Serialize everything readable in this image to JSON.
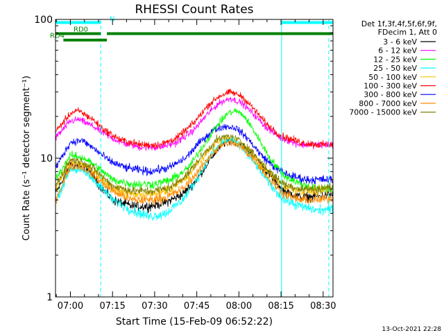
{
  "chart_data": {
    "type": "line",
    "title": "RHESSI Count Rates",
    "xlabel": "Start Time (15-Feb-09 06:52:22)",
    "ylabel": "Count Rate (s⁻¹ detector segment⁻¹)",
    "y_scale": "log",
    "ylim": [
      1,
      100
    ],
    "xlim_minutes": [
      -5.3,
      93.5
    ],
    "y_ticks": [
      {
        "value": 1,
        "label": "1"
      },
      {
        "value": 10,
        "label": "10"
      },
      {
        "value": 100,
        "label": "100"
      }
    ],
    "x_ticks": [
      {
        "minute": 0,
        "label": "07:00"
      },
      {
        "minute": 15,
        "label": "07:15"
      },
      {
        "minute": 30,
        "label": "07:30"
      },
      {
        "minute": 45,
        "label": "07:45"
      },
      {
        "minute": 60,
        "label": "08:00"
      },
      {
        "minute": 75,
        "label": "08:15"
      },
      {
        "minute": 90,
        "label": "08:30"
      }
    ],
    "legend_header": [
      "Det 1f,3f,4f,5f,6f,9f,",
      "FDecim 1, Att 0"
    ],
    "legend_position": "right",
    "series": [
      {
        "name": "3 - 6 keV",
        "color": "#000000",
        "profile": [
          [
            -5.3,
            5.5
          ],
          [
            0,
            9.0
          ],
          [
            6,
            8.5
          ],
          [
            10,
            6.5
          ],
          [
            15,
            5.0
          ],
          [
            22,
            4.5
          ],
          [
            28,
            4.5
          ],
          [
            34,
            4.8
          ],
          [
            40,
            5.5
          ],
          [
            45,
            7.0
          ],
          [
            50,
            10.0
          ],
          [
            54,
            12.5
          ],
          [
            57,
            13.5
          ],
          [
            61,
            12.5
          ],
          [
            66,
            10.0
          ],
          [
            71,
            7.5
          ],
          [
            76,
            5.8
          ],
          [
            82,
            5.2
          ],
          [
            88,
            5.3
          ],
          [
            93.5,
            5.5
          ]
        ]
      },
      {
        "name": "6 - 12 keV",
        "color": "#ff00ff",
        "profile": [
          [
            -5.3,
            14.0
          ],
          [
            0,
            18.5
          ],
          [
            3,
            19.0
          ],
          [
            8,
            17.0
          ],
          [
            12,
            15.0
          ],
          [
            18,
            13.0
          ],
          [
            25,
            12.0
          ],
          [
            32,
            12.0
          ],
          [
            38,
            13.0
          ],
          [
            44,
            16.0
          ],
          [
            49,
            21.0
          ],
          [
            53,
            25.0
          ],
          [
            57,
            27.0
          ],
          [
            61,
            25.0
          ],
          [
            65,
            21.0
          ],
          [
            70,
            16.5
          ],
          [
            75,
            14.0
          ],
          [
            82,
            12.5
          ],
          [
            88,
            12.5
          ],
          [
            93.5,
            12.5
          ]
        ]
      },
      {
        "name": "12 - 25 keV",
        "color": "#00ff00",
        "profile": [
          [
            -5.3,
            7.0
          ],
          [
            0,
            10.5
          ],
          [
            5,
            10.0
          ],
          [
            10,
            8.5
          ],
          [
            15,
            7.0
          ],
          [
            22,
            6.5
          ],
          [
            30,
            6.5
          ],
          [
            36,
            7.0
          ],
          [
            42,
            8.5
          ],
          [
            47,
            12.0
          ],
          [
            52,
            17.0
          ],
          [
            56,
            21.0
          ],
          [
            59,
            22.0
          ],
          [
            62,
            20.0
          ],
          [
            66,
            15.0
          ],
          [
            71,
            10.0
          ],
          [
            76,
            7.5
          ],
          [
            82,
            6.5
          ],
          [
            88,
            6.0
          ],
          [
            93.5,
            6.0
          ]
        ]
      },
      {
        "name": "25 - 50 keV",
        "color": "#00ffff",
        "profile": [
          [
            -5.3,
            4.8
          ],
          [
            0,
            8.5
          ],
          [
            5,
            8.0
          ],
          [
            10,
            6.5
          ],
          [
            15,
            5.0
          ],
          [
            22,
            4.2
          ],
          [
            28,
            3.8
          ],
          [
            34,
            4.0
          ],
          [
            40,
            5.0
          ],
          [
            45,
            7.0
          ],
          [
            50,
            10.5
          ],
          [
            54,
            13.0
          ],
          [
            57,
            13.5
          ],
          [
            61,
            12.0
          ],
          [
            66,
            9.0
          ],
          [
            71,
            6.5
          ],
          [
            76,
            5.0
          ],
          [
            82,
            4.5
          ],
          [
            88,
            4.2
          ],
          [
            93.5,
            4.3
          ]
        ]
      },
      {
        "name": "50 - 100 keV",
        "color": "#ffc000",
        "profile": [
          [
            -5.3,
            6.0
          ],
          [
            0,
            9.5
          ],
          [
            5,
            9.0
          ],
          [
            10,
            7.5
          ],
          [
            15,
            6.0
          ],
          [
            22,
            5.5
          ],
          [
            30,
            5.5
          ],
          [
            36,
            6.0
          ],
          [
            42,
            7.5
          ],
          [
            47,
            10.0
          ],
          [
            52,
            13.0
          ],
          [
            56,
            14.0
          ],
          [
            60,
            13.0
          ],
          [
            65,
            10.5
          ],
          [
            70,
            8.0
          ],
          [
            76,
            6.3
          ],
          [
            82,
            5.8
          ],
          [
            88,
            5.8
          ],
          [
            93.5,
            6.0
          ]
        ]
      },
      {
        "name": "100 - 300 keV",
        "color": "#ff0000",
        "profile": [
          [
            -5.3,
            15.5
          ],
          [
            0,
            21.0
          ],
          [
            3,
            22.0
          ],
          [
            8,
            19.0
          ],
          [
            12,
            16.0
          ],
          [
            18,
            13.5
          ],
          [
            25,
            12.5
          ],
          [
            32,
            12.5
          ],
          [
            38,
            14.0
          ],
          [
            44,
            18.0
          ],
          [
            49,
            24.0
          ],
          [
            53,
            28.0
          ],
          [
            57,
            30.0
          ],
          [
            61,
            28.0
          ],
          [
            65,
            23.0
          ],
          [
            70,
            17.5
          ],
          [
            75,
            14.5
          ],
          [
            82,
            13.0
          ],
          [
            88,
            12.5
          ],
          [
            93.5,
            12.5
          ]
        ]
      },
      {
        "name": "300 - 800 keV",
        "color": "#0000ff",
        "profile": [
          [
            -5.3,
            8.5
          ],
          [
            0,
            13.0
          ],
          [
            4,
            13.5
          ],
          [
            9,
            11.5
          ],
          [
            14,
            9.5
          ],
          [
            20,
            8.5
          ],
          [
            28,
            8.0
          ],
          [
            35,
            8.5
          ],
          [
            41,
            10.0
          ],
          [
            46,
            13.0
          ],
          [
            51,
            16.0
          ],
          [
            55,
            17.0
          ],
          [
            59,
            16.5
          ],
          [
            63,
            14.0
          ],
          [
            68,
            10.5
          ],
          [
            73,
            8.5
          ],
          [
            78,
            7.5
          ],
          [
            84,
            7.0
          ],
          [
            89,
            7.0
          ],
          [
            93.5,
            7.0
          ]
        ]
      },
      {
        "name": "800 - 7000 keV",
        "color": "#ff8c00",
        "profile": [
          [
            -5.3,
            5.0
          ],
          [
            0,
            8.8
          ],
          [
            5,
            8.5
          ],
          [
            10,
            7.0
          ],
          [
            15,
            5.8
          ],
          [
            22,
            5.0
          ],
          [
            28,
            5.0
          ],
          [
            34,
            5.2
          ],
          [
            40,
            6.0
          ],
          [
            45,
            7.8
          ],
          [
            50,
            10.5
          ],
          [
            54,
            12.5
          ],
          [
            57,
            13.0
          ],
          [
            61,
            12.0
          ],
          [
            66,
            9.5
          ],
          [
            71,
            7.0
          ],
          [
            76,
            5.5
          ],
          [
            82,
            5.0
          ],
          [
            88,
            5.0
          ],
          [
            93.5,
            5.2
          ]
        ]
      },
      {
        "name": "7000 - 15000 keV",
        "color": "#808000",
        "profile": [
          [
            -5.3,
            6.3
          ],
          [
            0,
            9.8
          ],
          [
            5,
            9.3
          ],
          [
            10,
            7.8
          ],
          [
            15,
            6.3
          ],
          [
            22,
            5.8
          ],
          [
            30,
            5.8
          ],
          [
            36,
            6.2
          ],
          [
            42,
            7.8
          ],
          [
            47,
            10.5
          ],
          [
            52,
            13.5
          ],
          [
            56,
            14.5
          ],
          [
            60,
            13.5
          ],
          [
            65,
            11.0
          ],
          [
            70,
            8.3
          ],
          [
            76,
            6.5
          ],
          [
            82,
            6.0
          ],
          [
            88,
            6.0
          ],
          [
            93.5,
            6.2
          ]
        ]
      }
    ],
    "draw_order": [
      0,
      1,
      5,
      6,
      2,
      4,
      8,
      3,
      7
    ],
    "attenuator_bars": [
      {
        "label": "N",
        "color": "#00ffff",
        "segments": [
          [
            -5.3,
            10.8
          ],
          [
            75.2,
            93.5
          ]
        ],
        "level": 95
      },
      {
        "label": "RD0",
        "color": "#008000",
        "segments": [
          [
            -5.3,
            10.8
          ],
          [
            13.0,
            93.5
          ]
        ],
        "level": 79
      },
      {
        "label": "RD4",
        "color": "#008000",
        "segments": [
          [
            -2.5,
            13.0
          ]
        ],
        "level": 71
      }
    ],
    "solid_vlines_minutes": [
      -5.3,
      75.2
    ],
    "dashed_vlines_minutes": [
      10.8,
      92.0
    ],
    "footer_date": "13-Oct-2021 22:28"
  }
}
